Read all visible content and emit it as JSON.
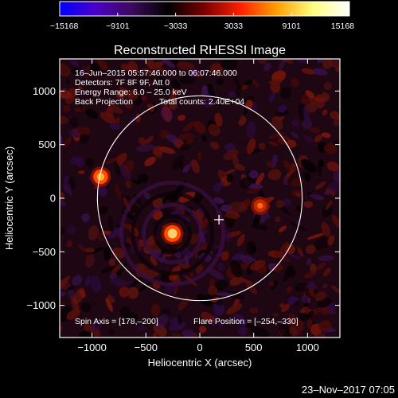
{
  "chart_data": {
    "type": "heatmap",
    "title": "Reconstructed RHESSI Image",
    "xlabel": "Heliocentric X (arcsec)",
    "ylabel": "Heliocentric Y (arcsec)",
    "xlim": [
      -1300,
      1300
    ],
    "ylim": [
      -1300,
      1300
    ],
    "xticks": [
      -1000,
      -500,
      0,
      500,
      1000
    ],
    "xtick_labels": [
      "−1000",
      "−500",
      "0",
      "500",
      "1000"
    ],
    "yticks": [
      -1000,
      -500,
      0,
      500,
      1000
    ],
    "ytick_labels": [
      "−1000",
      "−500",
      "0",
      "500",
      "1000"
    ],
    "colorbar": {
      "min": -15168,
      "max": 15168,
      "ticks": [
        -15168,
        -9101,
        -3033,
        3033,
        9101,
        15168
      ],
      "tick_labels": [
        "−15168",
        "−9101",
        "−3033",
        "3033",
        "9101",
        "15168"
      ],
      "colors": [
        "#0000ff",
        "#4b00c8",
        "#3c0a5a",
        "#000000",
        "#7a0000",
        "#ff2000",
        "#ffa000",
        "#ffff80",
        "#ffffff"
      ]
    },
    "annotations": [
      "16–Jun–2015 05:57:46.000 to 06:07:46.000",
      "Detectors: 7F 8F 9F, Att 0",
      "Energy Range: 6.0 – 25.0 keV",
      "Back Projection",
      "Total counts: 2.40E+04"
    ],
    "footer_notes": [
      "Spin Axis = [178,–200]",
      "Flare Position = [–254,–330]"
    ],
    "sources": [
      {
        "x": -254,
        "y": -330,
        "value": 15168
      },
      {
        "x": -920,
        "y": 200,
        "value": 10500
      },
      {
        "x": 560,
        "y": -70,
        "value": 6000
      }
    ],
    "solar_disk": {
      "center": [
        0,
        0
      ],
      "radius": 950,
      "color": "#ffffff"
    },
    "marker": {
      "x": 178,
      "y": -200,
      "symbol": "+",
      "color": "#ffffff"
    },
    "timestamp": "23–Nov–2017 07:05"
  }
}
